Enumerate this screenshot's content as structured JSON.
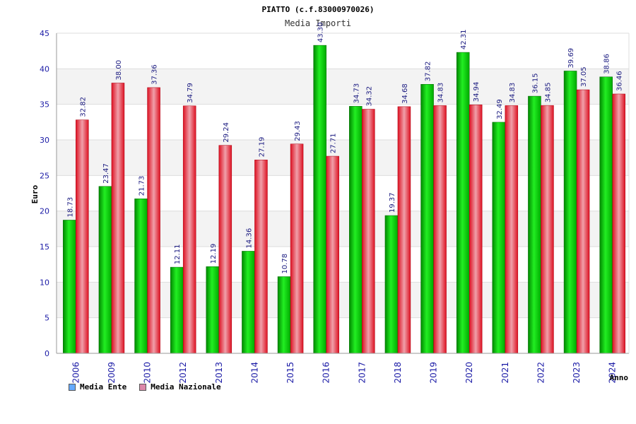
{
  "chart_data": {
    "type": "bar",
    "title": "PIATTO (c.f.83000970026)",
    "subtitle": "Media Importi",
    "xlabel": "Anno",
    "ylabel": "Euro",
    "ylim": [
      0,
      45
    ],
    "yticks": [
      0,
      5,
      10,
      15,
      20,
      25,
      30,
      35,
      40,
      45
    ],
    "categories": [
      "2006",
      "2009",
      "2010",
      "2012",
      "2013",
      "2014",
      "2015",
      "2016",
      "2017",
      "2018",
      "2019",
      "2020",
      "2021",
      "2022",
      "2023",
      "2024"
    ],
    "series": [
      {
        "name": "Media Ente",
        "color": "#00cc00",
        "legend_color": "#66aaff",
        "values": [
          18.73,
          23.47,
          21.73,
          12.11,
          12.19,
          14.36,
          10.78,
          43.3,
          34.73,
          19.37,
          37.82,
          42.31,
          32.49,
          36.15,
          39.69,
          38.86
        ],
        "labels": [
          "18.73",
          "23.47",
          "21.73",
          "12.11",
          "12.19",
          "14.36",
          "10.78",
          "43.30",
          "34.73",
          "19.37",
          "37.82",
          "42.31",
          "32.49",
          "36.15",
          "39.69",
          "38.86"
        ]
      },
      {
        "name": "Media Nazionale",
        "color": "#ee2233",
        "legend_color": "#dd88aa",
        "values": [
          32.82,
          38.0,
          37.36,
          34.79,
          29.24,
          27.19,
          29.43,
          27.71,
          34.32,
          34.68,
          34.83,
          34.94,
          34.83,
          34.85,
          37.05,
          36.46
        ],
        "labels": [
          "32.82",
          "38.00",
          "37.36",
          "34.79",
          "29.24",
          "27.19",
          "29.43",
          "27.71",
          "34.32",
          "34.68",
          "34.83",
          "34.94",
          "34.83",
          "34.85",
          "37.05",
          "36.46"
        ]
      }
    ],
    "grid": true,
    "legend_position": "bottom-left"
  }
}
